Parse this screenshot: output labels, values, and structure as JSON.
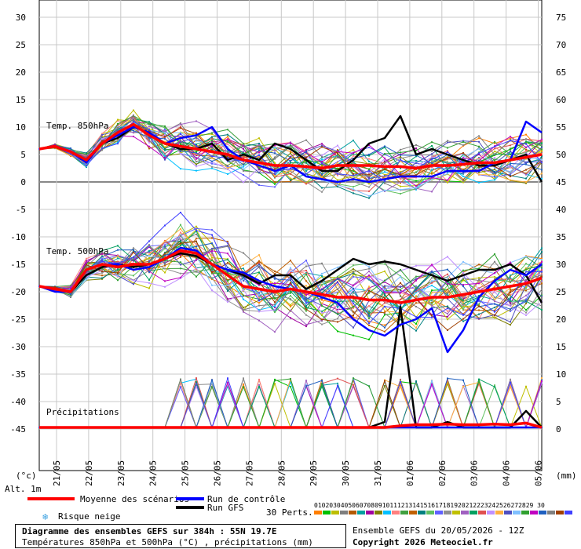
{
  "chart_data": {
    "type": "line",
    "dates": [
      "21/05",
      "22/05",
      "23/05",
      "24/05",
      "25/05",
      "26/05",
      "27/05",
      "28/05",
      "29/05",
      "30/05",
      "31/05",
      "01/06",
      "02/06",
      "03/06",
      "04/06",
      "05/06"
    ],
    "left_ticks": [
      "30",
      "25",
      "20",
      "15",
      "10",
      "5",
      "0",
      "-5",
      "-10",
      "-15",
      "-20",
      "-25",
      "-30",
      "-35",
      "-40",
      "-45"
    ],
    "right_ticks": [
      "75",
      "70",
      "65",
      "60",
      "55",
      "50",
      "45",
      "40",
      "35",
      "30",
      "25",
      "20",
      "15",
      "10",
      "5",
      "0"
    ],
    "left_unit": "(°c)",
    "right_unit": "(mm)",
    "alt_label": "Alt. 1m",
    "ylim_left": [
      -45,
      30
    ],
    "ylim_right": [
      0,
      75
    ],
    "grid": true,
    "panels": {
      "t850_label": "Temp. 850hPa",
      "t500_label": "Temp. 500hPa",
      "precip_label": "Précipitations"
    },
    "series": [
      {
        "name": "Moyenne des scénarios",
        "color": "#ff0000",
        "t850": [
          6,
          6.5,
          5.5,
          4,
          7,
          9,
          10.5,
          8.5,
          7,
          6.5,
          6,
          5.5,
          5,
          4,
          3.5,
          3,
          3,
          2.8,
          2.5,
          3,
          3,
          3,
          2.8,
          2.8,
          2.5,
          3,
          3,
          3.2,
          3.5,
          3.5,
          4,
          4.5,
          5
        ],
        "t500": [
          -19,
          -19.5,
          -20,
          -16,
          -15,
          -15.5,
          -15,
          -15,
          -14,
          -12.5,
          -13,
          -15,
          -17,
          -19,
          -19.5,
          -20,
          -19.5,
          -20,
          -20.5,
          -21,
          -21,
          -21.5,
          -21.5,
          -22,
          -21.5,
          -21,
          -21,
          -20.5,
          -20,
          -19.5,
          -19,
          -18.5,
          -17.5
        ],
        "precip": [
          0,
          0,
          0,
          0,
          0,
          0,
          0,
          0,
          0,
          0,
          0,
          0,
          0,
          0,
          0,
          0,
          0,
          0,
          0,
          0,
          0,
          0,
          0,
          0.3,
          0.5,
          0.5,
          0.6,
          0.5,
          0.5,
          0.6,
          0.5,
          0.8,
          0
        ]
      },
      {
        "name": "Run de contrôle",
        "color": "#0000ff",
        "t850": [
          6,
          6.5,
          5.5,
          3.5,
          7,
          8.5,
          10,
          9,
          7,
          8,
          8.5,
          10,
          6,
          4,
          3,
          2,
          3,
          1,
          0.5,
          0,
          0.5,
          0,
          0.5,
          1,
          1,
          1,
          2,
          2,
          2,
          3.5,
          4,
          11,
          9
        ],
        "t500": [
          -19,
          -20,
          -20,
          -16,
          -15,
          -15,
          -16,
          -15.5,
          -14,
          -12,
          -12.5,
          -15,
          -16,
          -16.5,
          -18,
          -19,
          -19.5,
          -20,
          -21,
          -22,
          -25,
          -27,
          -28,
          -26,
          -25,
          -23,
          -31,
          -27,
          -21,
          -18,
          -16,
          -17,
          -15
        ],
        "precip": [
          0,
          0,
          0,
          0,
          0,
          0,
          0,
          0,
          0,
          0,
          0,
          0,
          0,
          0,
          0,
          0,
          0,
          0,
          0,
          0,
          0,
          0,
          0,
          0,
          0,
          0,
          0,
          0,
          0,
          0,
          0,
          0,
          0
        ]
      },
      {
        "name": "Run GFS",
        "color": "#000000",
        "t850": [
          6,
          6.5,
          5.5,
          4,
          7,
          8,
          10,
          9,
          7,
          6,
          6,
          7,
          4,
          5,
          4,
          7,
          6,
          4,
          2,
          2,
          4,
          7,
          8,
          12,
          5,
          6,
          5,
          4,
          3,
          3,
          4,
          5,
          0
        ],
        "t500": [
          -19,
          -19.5,
          -20,
          -17,
          -15.5,
          -15,
          -15.5,
          -15,
          -14,
          -13,
          -13.5,
          -15,
          -16,
          -17,
          -18.5,
          -17,
          -17,
          -19.5,
          -18,
          -16,
          -14,
          -15,
          -14.5,
          -15,
          -16,
          -17,
          -18,
          -17,
          -16,
          -16,
          -15,
          -17,
          -22
        ],
        "precip": [
          0,
          0,
          0,
          0,
          0,
          0,
          0,
          0,
          0,
          0,
          0,
          0,
          0,
          0,
          0,
          0,
          0,
          0,
          0,
          0,
          0,
          0,
          1,
          22,
          0,
          0,
          1,
          0,
          0,
          0,
          0,
          3,
          0
        ]
      }
    ],
    "perturbations": {
      "count": 30,
      "label": "30 Perts.",
      "numbers": "0102030405060708091011121314151617181920212223242526272829 30",
      "colors": [
        "#ff7f00",
        "#00c000",
        "#bebe00",
        "#7f7f7f",
        "#b45a00",
        "#00a0a0",
        "#a000a0",
        "#808000",
        "#00c0ff",
        "#ff8080",
        "#40a040",
        "#c06000",
        "#008080",
        "#60c060",
        "#6060ff",
        "#909090",
        "#c0c000",
        "#a060c0",
        "#00a060",
        "#e05050",
        "#c090ff",
        "#ffb040",
        "#5050c0",
        "#80c0ff",
        "#30a030",
        "#c000c0",
        "#2060c0",
        "#808080",
        "#a04000",
        "#4040ff"
      ]
    },
    "legend": {
      "mean": "Moyenne des scénarios",
      "control": "Run de contrôle",
      "gfs": "Run GFS",
      "snow": "Risque neige"
    },
    "footer": {
      "title": "Diagramme des ensembles GEFS sur 384h : 55N 19.7E",
      "subtitle": "Températures 850hPa et 500hPa (°C) , précipitations (mm)",
      "run": "Ensemble GEFS du 20/05/2026 - 12Z",
      "copyright": "Copyright 2026 Meteociel.fr"
    }
  }
}
